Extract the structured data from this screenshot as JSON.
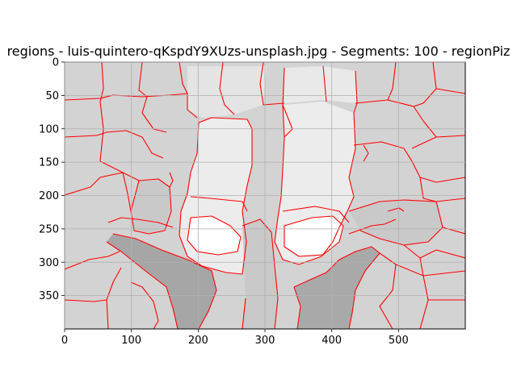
{
  "chart_data": {
    "type": "heatmap",
    "title": "regions - luis-quintero-qKspdY9XUzs-unsplash.jpg - Segments: 100 - regionPiz",
    "xlabel": "",
    "ylabel": "",
    "xlim": [
      0,
      600
    ],
    "ylim": [
      400,
      0
    ],
    "x_ticks": [
      0,
      100,
      200,
      300,
      400,
      500
    ],
    "y_ticks": [
      0,
      50,
      100,
      150,
      200,
      250,
      300,
      350
    ],
    "x_tick_labels": [
      "0",
      "100",
      "200",
      "300",
      "400",
      "500"
    ],
    "y_tick_labels": [
      "0",
      "50",
      "100",
      "150",
      "200",
      "250",
      "300",
      "350"
    ],
    "grid": true,
    "segment_count": 100,
    "colors": {
      "boundary": "#ff0000",
      "background_grey": "#d3d3d3",
      "light_region": "#ececec",
      "white_region": "#ffffff",
      "mid_region": "#c8c8c8",
      "dark_region": "#a6a6a6"
    }
  }
}
